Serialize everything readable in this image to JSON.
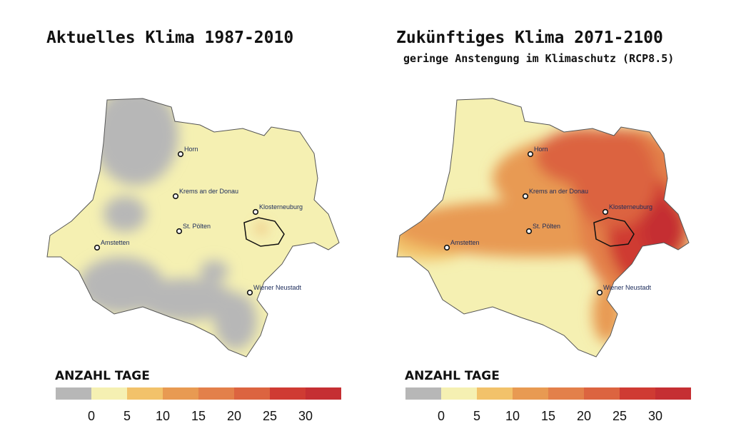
{
  "panels": [
    {
      "title": "Aktuelles Klima 1987-2010",
      "cities": [
        "Horn",
        "Krems an der Donau",
        "Klosterneuburg",
        "St. Pölten",
        "Amstetten",
        "Wiener Neustadt"
      ],
      "legend": {
        "title": "ANZAHL TAGE",
        "colors": [
          "#b7b7b7",
          "#f5f0b2",
          "#f2c26a",
          "#e89a52",
          "#e3804a",
          "#dc6440",
          "#cf3b33",
          "#c52f33"
        ],
        "ticks": [
          0,
          5,
          10,
          15,
          20,
          25,
          30
        ]
      }
    },
    {
      "title": "Zukünftiges Klima 2071-2100",
      "subtitle": "geringe Anstengung im Klimaschutz (RCP8.5)",
      "cities": [
        "Horn",
        "Krems an der Donau",
        "Klosterneuburg",
        "St. Pölten",
        "Amstetten",
        "Wiener Neustadt"
      ],
      "legend": {
        "title": "ANZAHL TAGE",
        "colors": [
          "#b7b7b7",
          "#f5f0b2",
          "#f2c26a",
          "#e89a52",
          "#e3804a",
          "#dc6440",
          "#cf3b33",
          "#c52f33"
        ],
        "ticks": [
          0,
          5,
          10,
          15,
          20,
          25,
          30
        ]
      }
    }
  ]
}
